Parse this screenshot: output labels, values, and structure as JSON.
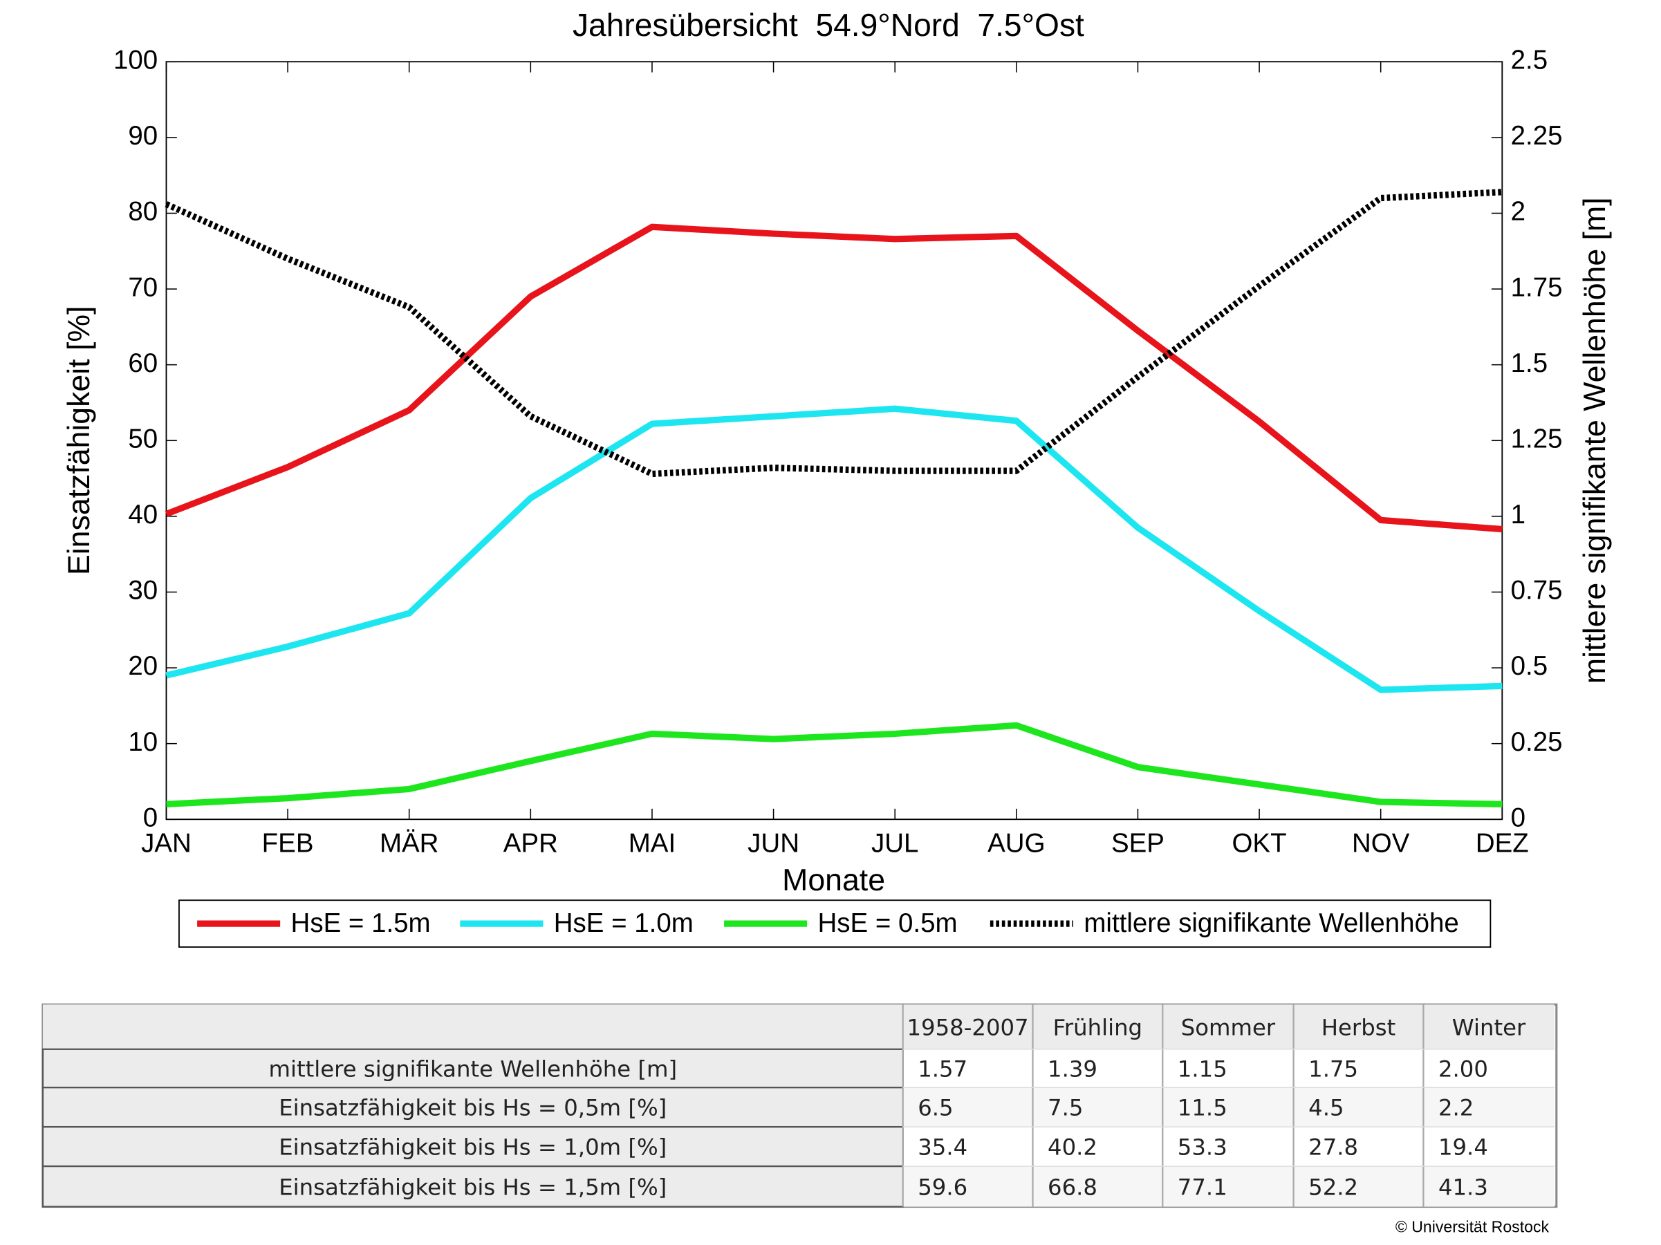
{
  "chart_data": {
    "type": "line",
    "title": "Jahresübersicht  54.9°Nord  7.5°Ost",
    "x_label": "Monate",
    "y_label": "Einsatzfähigkeit [%]",
    "y2_label": "mittlere signifikante Wellenhöhe [m]",
    "categories": [
      "JAN",
      "FEB",
      "MÄR",
      "APR",
      "MAI",
      "JUN",
      "JUL",
      "AUG",
      "SEP",
      "OKT",
      "NOV",
      "DEZ"
    ],
    "ylim": [
      0,
      100
    ],
    "yticks": [
      0,
      10,
      20,
      30,
      40,
      50,
      60,
      70,
      80,
      90,
      100
    ],
    "y2lim": [
      0,
      2.5
    ],
    "y2ticks": [
      0,
      0.25,
      0.5,
      0.75,
      1,
      1.25,
      1.5,
      1.75,
      2,
      2.25,
      2.5
    ],
    "series": [
      {
        "name": "HsE = 1.5m",
        "color": "#e8141c",
        "values": [
          40.3,
          46.5,
          54,
          69,
          78.2,
          77.3,
          76.6,
          77,
          64.5,
          52.5,
          39.5,
          38.3
        ]
      },
      {
        "name": "HsE = 1.0m",
        "color": "#1ee6f0",
        "values": [
          19,
          22.8,
          27.2,
          42.4,
          52.2,
          53.2,
          54.2,
          52.6,
          38.5,
          27.5,
          17.1,
          17.6
        ]
      },
      {
        "name": "HsE = 0.5m",
        "color": "#1ee61e",
        "values": [
          2,
          2.8,
          4,
          7.7,
          11.3,
          10.6,
          11.3,
          12.4,
          6.9,
          4.6,
          2.3,
          2
        ]
      },
      {
        "name": "mittlere signifikante Wellenhöhe",
        "color": "#000000",
        "dashed": true,
        "axis": "y2",
        "values": [
          2.03,
          1.85,
          1.69,
          1.33,
          1.14,
          1.16,
          1.15,
          1.15,
          1.46,
          1.76,
          2.05,
          2.07
        ]
      }
    ]
  },
  "table": {
    "columns": [
      "1958-2007",
      "Frühling",
      "Sommer",
      "Herbst",
      "Winter"
    ],
    "rows": [
      [
        "mittlere signifikante Wellenhöhe [m]",
        "1.57",
        "1.39",
        "1.15",
        "1.75",
        "2.00"
      ],
      [
        "Einsatzfähigkeit bis Hs = 0,5m [%]",
        "6.5",
        "7.5",
        "11.5",
        "4.5",
        "2.2"
      ],
      [
        "Einsatzfähigkeit bis Hs = 1,0m [%]",
        "35.4",
        "40.2",
        "53.3",
        "27.8",
        "19.4"
      ],
      [
        "Einsatzfähigkeit bis Hs = 1,5m [%]",
        "59.6",
        "66.8",
        "77.1",
        "52.2",
        "41.3"
      ]
    ]
  },
  "footer": "© Universität Rostock"
}
